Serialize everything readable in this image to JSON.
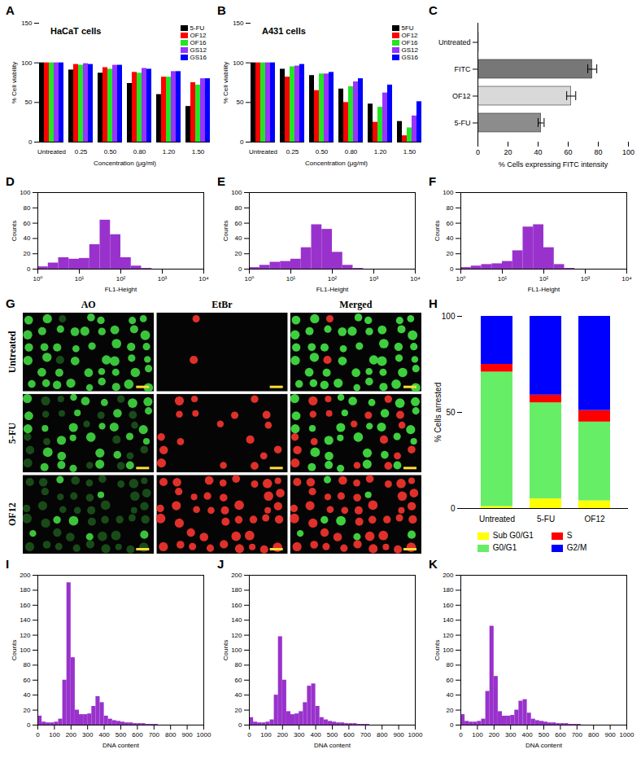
{
  "chart_data": [
    {
      "panel": "A",
      "type": "bar",
      "title": "HaCaT cells",
      "categories": [
        "Untreated",
        "0.25",
        "0.50",
        "0.80",
        "1.20",
        "1.50"
      ],
      "series": [
        {
          "name": "5-FU",
          "color": "#000000",
          "values": [
            100,
            91,
            87,
            74,
            60,
            45
          ]
        },
        {
          "name": "OF12",
          "color": "#ff0000",
          "values": [
            100,
            98,
            94,
            88,
            82,
            75
          ]
        },
        {
          "name": "OF16",
          "color": "#22e622",
          "values": [
            100,
            97,
            92,
            87,
            82,
            72
          ]
        },
        {
          "name": "GS12",
          "color": "#9933ff",
          "values": [
            100,
            99,
            97,
            93,
            89,
            80
          ]
        },
        {
          "name": "GS16",
          "color": "#0000ff",
          "values": [
            100,
            98,
            97,
            92,
            89,
            80
          ]
        }
      ],
      "ylim": [
        0,
        150
      ],
      "yticks": [
        0,
        50,
        100,
        150
      ],
      "x_label": "Concentration (μg/ml)",
      "y_label": "% Cell viability",
      "legend": "top-right"
    },
    {
      "panel": "B",
      "type": "bar",
      "title": "A431 cells",
      "categories": [
        "Untreated",
        "0.25",
        "0.50",
        "0.80",
        "1.20",
        "1.50"
      ],
      "series": [
        {
          "name": "5FU",
          "color": "#000000",
          "values": [
            100,
            92,
            84,
            67,
            48,
            26
          ]
        },
        {
          "name": "OF12",
          "color": "#ff0000",
          "values": [
            100,
            82,
            65,
            50,
            25,
            8
          ]
        },
        {
          "name": "OF16",
          "color": "#22e622",
          "values": [
            100,
            95,
            86,
            70,
            44,
            18
          ]
        },
        {
          "name": "GS12",
          "color": "#9933ff",
          "values": [
            100,
            96,
            86,
            76,
            62,
            33
          ]
        },
        {
          "name": "GS16",
          "color": "#0000ff",
          "values": [
            100,
            98,
            88,
            80,
            72,
            51
          ]
        }
      ],
      "ylim": [
        0,
        150
      ],
      "yticks": [
        0,
        50,
        100,
        150
      ],
      "x_label": "Concentration (μg/ml)",
      "y_label": "% Cell viability",
      "legend": "top-right"
    },
    {
      "panel": "C",
      "type": "bar",
      "orientation": "horizontal",
      "categories": [
        "Untreated",
        "FITC",
        "OF12",
        "5-FU"
      ],
      "values": [
        0.5,
        76,
        62,
        42
      ],
      "errors": [
        0,
        3,
        3,
        2
      ],
      "colors": [
        "#000000",
        "#777777",
        "#d9d9d9",
        "#8c8c8c"
      ],
      "xlim": [
        0,
        100
      ],
      "xticks": [
        0,
        20,
        40,
        60,
        80,
        100
      ],
      "x_label": "% Cells expressing FITC intensity"
    },
    {
      "panel": "D",
      "type": "histogram",
      "color": "#9932cc",
      "log": "x",
      "bins": [
        1,
        1.78,
        3.16,
        5.62,
        10,
        17.8,
        31.6,
        56.2,
        100,
        178,
        316,
        562,
        1000,
        1778,
        3162,
        5623,
        10000
      ],
      "counts": [
        3,
        8,
        15,
        13,
        14,
        32,
        64,
        45,
        15,
        4,
        1,
        0,
        0,
        0,
        0,
        0
      ],
      "xlim": [
        1,
        10000
      ],
      "xticks": [
        {
          "value": 1,
          "label": "10⁰"
        },
        {
          "value": 10,
          "label": "10¹"
        },
        {
          "value": 100,
          "label": "10²"
        },
        {
          "value": 1000,
          "label": "10³"
        },
        {
          "value": 10000,
          "label": "10⁴"
        }
      ],
      "ylim": [
        0,
        100
      ],
      "yticks": [
        0,
        20,
        40,
        60,
        80,
        100
      ],
      "x_label": "FL1-Height",
      "y_label": "Counts"
    },
    {
      "panel": "E",
      "type": "histogram",
      "color": "#9932cc",
      "log": "x",
      "bins": [
        1,
        1.78,
        3.16,
        5.62,
        10,
        17.8,
        31.6,
        56.2,
        100,
        178,
        316,
        562,
        1000,
        1778,
        3162,
        5623,
        10000
      ],
      "counts": [
        2,
        5,
        9,
        10,
        13,
        28,
        58,
        52,
        22,
        5,
        1,
        0,
        0,
        0,
        0,
        0
      ],
      "xlim": [
        1,
        10000
      ],
      "xticks": [
        {
          "value": 1,
          "label": "10⁰"
        },
        {
          "value": 10,
          "label": "10¹"
        },
        {
          "value": 100,
          "label": "10²"
        },
        {
          "value": 1000,
          "label": "10³"
        },
        {
          "value": 10000,
          "label": "10⁴"
        }
      ],
      "ylim": [
        0,
        100
      ],
      "yticks": [
        0,
        20,
        40,
        60,
        80,
        100
      ],
      "x_label": "FL1-Height",
      "y_label": "Counts"
    },
    {
      "panel": "F",
      "type": "histogram",
      "color": "#9932cc",
      "log": "x",
      "bins": [
        1,
        1.78,
        3.16,
        5.62,
        10,
        17.8,
        31.6,
        56.2,
        100,
        178,
        316,
        562,
        1000,
        1778,
        3162,
        5623,
        10000
      ],
      "counts": [
        2,
        4,
        6,
        7,
        10,
        24,
        55,
        58,
        28,
        6,
        1,
        0,
        0,
        0,
        0,
        0
      ],
      "xlim": [
        1,
        10000
      ],
      "xticks": [
        {
          "value": 1,
          "label": "10⁰"
        },
        {
          "value": 10,
          "label": "10¹"
        },
        {
          "value": 100,
          "label": "10²"
        },
        {
          "value": 1000,
          "label": "10³"
        },
        {
          "value": 10000,
          "label": "10⁴"
        }
      ],
      "ylim": [
        0,
        100
      ],
      "yticks": [
        0,
        20,
        40,
        60,
        80,
        100
      ],
      "x_label": "FL1-Height",
      "y_label": "Counts"
    },
    {
      "panel": "G",
      "type": "image_grid",
      "columns": [
        "AO",
        "EtBr",
        "Merged"
      ],
      "rows": [
        "Untreated",
        "5-FU",
        "OF12"
      ]
    },
    {
      "panel": "H",
      "type": "bar",
      "stacked": true,
      "categories": [
        "Untreated",
        "5-FU",
        "OF12"
      ],
      "series": [
        {
          "name": "Sub G0/G1",
          "color": "#ffff00",
          "values": [
            1,
            5,
            4
          ]
        },
        {
          "name": "G0/G1",
          "color": "#66ee66",
          "values": [
            70,
            50,
            41
          ]
        },
        {
          "name": "S",
          "color": "#ff0000",
          "values": [
            4,
            4,
            6
          ]
        },
        {
          "name": "G2/M",
          "color": "#0000ff",
          "values": [
            25,
            41,
            49
          ]
        }
      ],
      "ylim": [
        0,
        100
      ],
      "yticks": [
        0,
        50,
        100
      ],
      "y_label": "% Cells arrested",
      "legend": "bottom"
    },
    {
      "panel": "I",
      "type": "histogram",
      "color": "#9932cc",
      "bins": [
        0,
        25,
        50,
        75,
        100,
        125,
        150,
        175,
        200,
        225,
        250,
        275,
        300,
        325,
        350,
        375,
        400,
        425,
        450,
        475,
        500,
        525,
        550,
        575,
        600,
        625,
        650,
        675,
        700,
        725,
        750,
        775,
        800,
        825,
        850,
        875,
        900,
        925,
        950,
        975,
        1000
      ],
      "counts": [
        12,
        4,
        3,
        3,
        4,
        8,
        60,
        190,
        90,
        20,
        14,
        14,
        15,
        25,
        38,
        30,
        12,
        8,
        6,
        5,
        4,
        3,
        3,
        2,
        2,
        2,
        1,
        1,
        1,
        0,
        0,
        0,
        0,
        0,
        0,
        0,
        0,
        0,
        0,
        0
      ],
      "xlim": [
        0,
        1000
      ],
      "xticks": [
        0,
        100,
        200,
        300,
        400,
        500,
        600,
        700,
        800,
        900,
        1000
      ],
      "ylim": [
        0,
        200
      ],
      "yticks": [
        0,
        20,
        40,
        60,
        80,
        100,
        120,
        140,
        160,
        180,
        200
      ],
      "x_label": "DNA content",
      "y_label": "Counts"
    },
    {
      "panel": "J",
      "type": "histogram",
      "color": "#9932cc",
      "bins": [
        0,
        25,
        50,
        75,
        100,
        125,
        150,
        175,
        200,
        225,
        250,
        275,
        300,
        325,
        350,
        375,
        400,
        425,
        450,
        475,
        500,
        525,
        550,
        575,
        600,
        625,
        650,
        675,
        700,
        725,
        750,
        775,
        800,
        825,
        850,
        875,
        900,
        925,
        950,
        975,
        1000
      ],
      "counts": [
        10,
        4,
        3,
        3,
        4,
        7,
        40,
        118,
        60,
        18,
        14,
        15,
        18,
        30,
        52,
        55,
        25,
        10,
        7,
        5,
        4,
        3,
        3,
        2,
        2,
        2,
        1,
        1,
        1,
        0,
        0,
        0,
        0,
        0,
        0,
        0,
        0,
        0,
        0,
        0
      ],
      "xlim": [
        0,
        1000
      ],
      "xticks": [
        0,
        100,
        200,
        300,
        400,
        500,
        600,
        700,
        800,
        900,
        1000
      ],
      "ylim": [
        0,
        200
      ],
      "yticks": [
        0,
        20,
        40,
        60,
        80,
        100,
        120,
        140,
        160,
        180,
        200
      ],
      "x_label": "DNA content",
      "y_label": "Counts"
    },
    {
      "panel": "K",
      "type": "histogram",
      "color": "#9932cc",
      "bins": [
        0,
        25,
        50,
        75,
        100,
        125,
        150,
        175,
        200,
        225,
        250,
        275,
        300,
        325,
        350,
        375,
        400,
        425,
        450,
        475,
        500,
        525,
        550,
        575,
        600,
        625,
        650,
        675,
        700,
        725,
        750,
        775,
        800,
        825,
        850,
        875,
        900,
        925,
        950,
        975,
        1000
      ],
      "counts": [
        14,
        5,
        4,
        4,
        5,
        8,
        45,
        132,
        65,
        18,
        12,
        12,
        13,
        20,
        32,
        34,
        16,
        8,
        6,
        5,
        4,
        3,
        3,
        2,
        2,
        2,
        1,
        1,
        1,
        0,
        0,
        0,
        0,
        0,
        0,
        0,
        0,
        0,
        0,
        0
      ],
      "xlim": [
        0,
        1000
      ],
      "xticks": [
        0,
        100,
        200,
        300,
        400,
        500,
        600,
        700,
        800,
        900,
        1000
      ],
      "ylim": [
        0,
        200
      ],
      "yticks": [
        0,
        20,
        40,
        60,
        80,
        100,
        120,
        140,
        160,
        180,
        200
      ],
      "x_label": "DNA content",
      "y_label": "Counts"
    }
  ]
}
